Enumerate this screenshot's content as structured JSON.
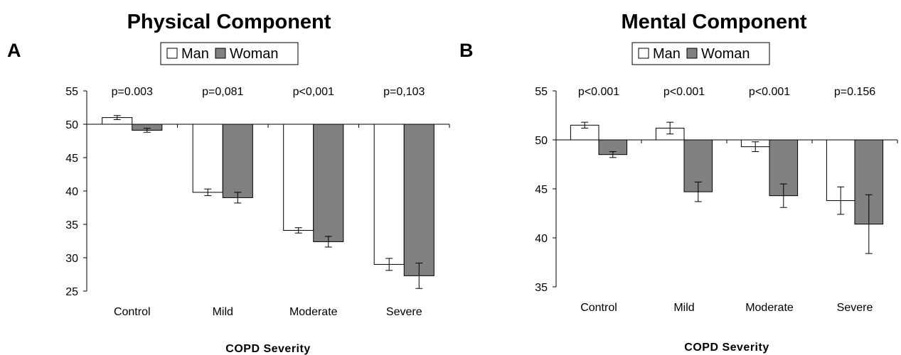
{
  "colors": {
    "man": "#ffffff",
    "woman": "#808080",
    "stroke": "#000000"
  },
  "chart_data": [
    {
      "type": "bar",
      "panel_label": "A",
      "title": "Physical Component",
      "xlabel": "COPD Severity",
      "ylabel": "",
      "baseline": 50,
      "ylim": [
        25,
        55
      ],
      "yticks": [
        25,
        30,
        35,
        40,
        45,
        50,
        55
      ],
      "categories": [
        "Control",
        "Mild",
        "Moderate",
        "Severe"
      ],
      "p_values": [
        "p=0.003",
        "p=0,081",
        "p<0,001",
        "p=0,103"
      ],
      "legend": {
        "position": "top-center"
      },
      "series": [
        {
          "name": "Man",
          "values": [
            51.0,
            39.8,
            34.1,
            29.0
          ],
          "errors": [
            0.3,
            0.5,
            0.4,
            0.9
          ]
        },
        {
          "name": "Woman",
          "values": [
            49.1,
            39.0,
            32.4,
            27.3
          ],
          "errors": [
            0.3,
            0.8,
            0.8,
            1.9
          ]
        }
      ]
    },
    {
      "type": "bar",
      "panel_label": "B",
      "title": "Mental Component",
      "xlabel": "COPD Severity",
      "ylabel": "",
      "baseline": 50,
      "ylim": [
        35,
        55
      ],
      "yticks": [
        35,
        40,
        45,
        50,
        55
      ],
      "categories": [
        "Control",
        "Mild",
        "Moderate",
        "Severe"
      ],
      "p_values": [
        "p<0.001",
        "p<0.001",
        "p<0.001",
        "p=0.156"
      ],
      "legend": {
        "position": "top-center"
      },
      "series": [
        {
          "name": "Man",
          "values": [
            51.5,
            51.2,
            49.3,
            43.8
          ],
          "errors": [
            0.3,
            0.6,
            0.5,
            1.4
          ]
        },
        {
          "name": "Woman",
          "values": [
            48.5,
            44.7,
            44.3,
            41.4
          ],
          "errors": [
            0.3,
            1.0,
            1.2,
            3.0
          ]
        }
      ]
    }
  ]
}
